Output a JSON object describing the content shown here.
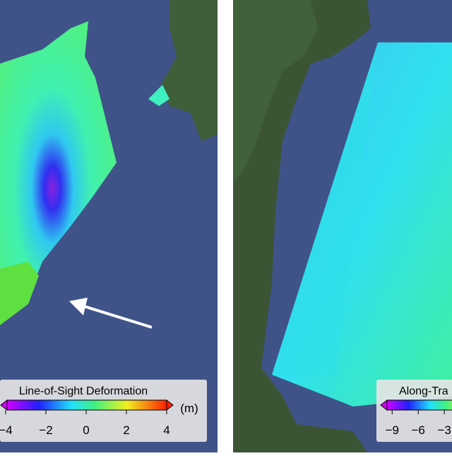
{
  "panels": [
    {
      "colorbar": {
        "title": "Line-of-Sight Deformation",
        "unit": "(m)",
        "ticks": [
          {
            "value": -4,
            "label": "−4"
          },
          {
            "value": -2,
            "label": "−2"
          },
          0,
          2,
          {
            "value": 4,
            "label": "4"
          }
        ]
      }
    },
    {
      "colorbar": {
        "title": "Along-Tra",
        "ticks": [
          {
            "value": -9,
            "label": "−9"
          },
          {
            "value": -6,
            "label": "−6"
          },
          {
            "value": -3,
            "label": "−3"
          }
        ]
      }
    }
  ]
}
